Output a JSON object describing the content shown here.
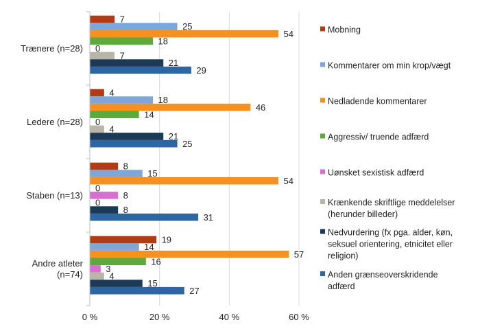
{
  "chart_data": {
    "type": "bar",
    "orientation": "horizontal",
    "categories": [
      [
        "Trænere (n=28)"
      ],
      [
        "Ledere (n=28)"
      ],
      [
        "Staben (n=13)"
      ],
      [
        "Andre atleter",
        "(n=74)"
      ]
    ],
    "series": [
      {
        "name": "Mobning",
        "color": "#b33a12",
        "values": [
          7,
          4,
          8,
          19
        ]
      },
      {
        "name": "Kommentarer om min krop/vægt",
        "color": "#7ea6d6",
        "values": [
          25,
          18,
          15,
          14
        ]
      },
      {
        "name": "Nedladende kommentarer",
        "color": "#f7901e",
        "values": [
          54,
          46,
          54,
          57
        ]
      },
      {
        "name": "Aggressiv/ truende adfærd",
        "color": "#5daa3c",
        "values": [
          18,
          14,
          0,
          16
        ]
      },
      {
        "name": "Uønsket sexistisk adfærd",
        "color": "#d86fd0",
        "values": [
          0,
          0,
          8,
          3
        ]
      },
      {
        "name": "Krænkende skriftlige meddelelser (herunder billeder)",
        "color": "#b8b7a7",
        "values": [
          7,
          4,
          0,
          4
        ]
      },
      {
        "name": "Nedvurdering (fx pga. alder, køn, seksuel orientering, etnicitet eller religion)",
        "color": "#1c3a56",
        "values": [
          21,
          21,
          8,
          15
        ]
      },
      {
        "name": "Anden grænseoverskridende adfærd",
        "color": "#2e65a3",
        "values": [
          29,
          25,
          31,
          27
        ]
      }
    ],
    "value_labels": [
      [
        "7",
        "25",
        "54",
        "18",
        "0",
        "7",
        "21",
        "29"
      ],
      [
        "4",
        "18",
        "46",
        "14",
        "0",
        "4",
        "21",
        "25"
      ],
      [
        "8",
        "15",
        "54",
        "0",
        "8",
        "0",
        "8",
        "31"
      ],
      [
        "19",
        "14",
        "57",
        "16",
        "3",
        "4",
        "15",
        "27"
      ]
    ],
    "legend": [
      [
        "Mobning"
      ],
      [
        "Kommentarer om min krop/vægt"
      ],
      [
        "Nedladende kommentarer"
      ],
      [
        "Aggressiv/ truende adfærd"
      ],
      [
        "Uønsket sexistisk adfærd"
      ],
      [
        "Krænkende skriftlige meddelelser",
        "(herunder billeder)"
      ],
      [
        "Nedvurdering (fx pga. alder, køn,",
        "seksuel orientering, etnicitet eller",
        "religion)"
      ],
      [
        "Anden grænseoverskridende",
        "adfærd"
      ]
    ],
    "xlim": [
      0,
      60
    ],
    "x_ticks": [
      0,
      20,
      40,
      60
    ],
    "x_tick_labels": [
      "0 %",
      "20 %",
      "40 %",
      "60 %"
    ],
    "grid": "vertical",
    "legend_position": "right",
    "title": "",
    "xlabel": "",
    "ylabel": ""
  }
}
